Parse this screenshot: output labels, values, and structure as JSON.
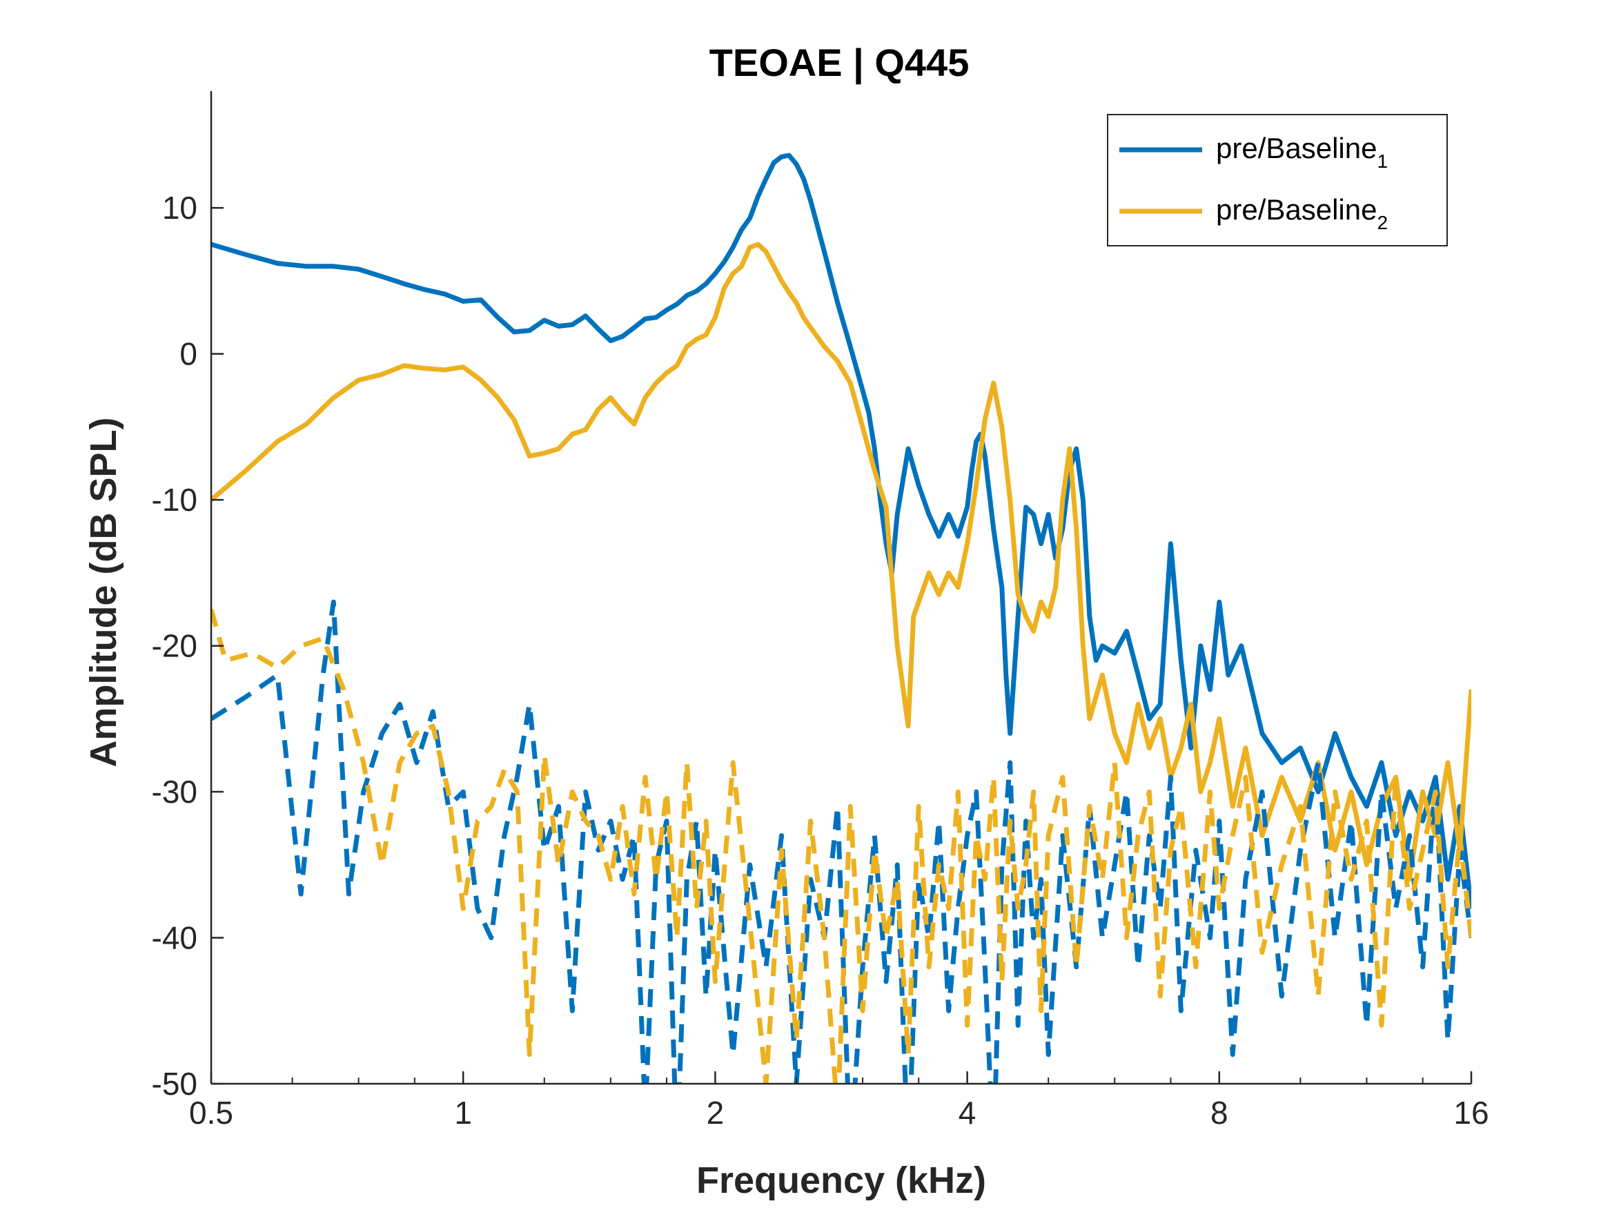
{
  "chart_data": {
    "type": "line",
    "title": "TEOAE | Q445",
    "xlabel": "Frequency (kHz)",
    "ylabel": "Amplitude (dB SPL)",
    "xscale": "log2",
    "xlim": [
      0.5,
      16
    ],
    "ylim": [
      -50,
      18
    ],
    "xticks": [
      0.5,
      1,
      2,
      4,
      8,
      16
    ],
    "xtick_labels": [
      "0.5",
      "1",
      "2",
      "4",
      "8",
      "16"
    ],
    "yticks": [
      10,
      0,
      -10,
      -20,
      -30,
      -40,
      -50
    ],
    "ytick_labels": [
      "10",
      "0",
      "-10",
      "-20",
      "-30",
      "-40",
      "-50"
    ],
    "grid": false,
    "legend_position": "top-right",
    "colors": {
      "series1": "#0072BD",
      "series2": "#EDB120",
      "axis": "#262626"
    },
    "series": [
      {
        "name": "pre/Baseline",
        "subscript": "1",
        "style": "solid",
        "color": "#0072BD",
        "x": [
          0.5,
          0.55,
          0.6,
          0.65,
          0.7,
          0.75,
          0.8,
          0.85,
          0.9,
          0.95,
          1.0,
          1.05,
          1.1,
          1.15,
          1.2,
          1.25,
          1.3,
          1.35,
          1.4,
          1.45,
          1.5,
          1.55,
          1.6,
          1.65,
          1.7,
          1.75,
          1.8,
          1.85,
          1.9,
          1.95,
          2.0,
          2.05,
          2.1,
          2.15,
          2.2,
          2.25,
          2.3,
          2.35,
          2.4,
          2.45,
          2.5,
          2.55,
          2.6,
          2.7,
          2.8,
          2.9,
          3.0,
          3.05,
          3.1,
          3.15,
          3.2,
          3.25,
          3.3,
          3.4,
          3.5,
          3.6,
          3.7,
          3.8,
          3.9,
          4.0,
          4.05,
          4.1,
          4.15,
          4.2,
          4.3,
          4.4,
          4.45,
          4.5,
          4.6,
          4.7,
          4.8,
          4.9,
          5.0,
          5.1,
          5.2,
          5.3,
          5.4,
          5.5,
          5.6,
          5.7,
          5.8,
          6.0,
          6.2,
          6.4,
          6.6,
          6.8,
          7.0,
          7.2,
          7.4,
          7.6,
          7.8,
          8.0,
          8.2,
          8.5,
          9.0,
          9.5,
          10.0,
          10.5,
          11.0,
          11.5,
          12.0,
          12.5,
          13.0,
          13.5,
          14.0,
          14.5,
          15.0,
          15.5,
          16.0
        ],
        "y": [
          7.5,
          6.8,
          6.2,
          6.0,
          6.0,
          5.8,
          5.3,
          4.8,
          4.4,
          4.1,
          3.6,
          3.7,
          2.5,
          1.5,
          1.6,
          2.3,
          1.9,
          2.0,
          2.6,
          1.7,
          0.9,
          1.2,
          1.8,
          2.4,
          2.5,
          3.0,
          3.4,
          4.0,
          4.3,
          4.8,
          5.5,
          6.3,
          7.3,
          8.5,
          9.3,
          10.8,
          12.0,
          13.1,
          13.5,
          13.6,
          13.0,
          12.0,
          10.5,
          7.0,
          3.5,
          0.5,
          -2.5,
          -4.0,
          -6.5,
          -10.0,
          -13.0,
          -15.0,
          -11.0,
          -6.5,
          -9.0,
          -11.0,
          -12.5,
          -11.0,
          -12.5,
          -10.5,
          -8.0,
          -6.0,
          -5.5,
          -7.0,
          -12.0,
          -16.0,
          -22.0,
          -26.0,
          -18.0,
          -10.5,
          -11.0,
          -13.0,
          -11.0,
          -14.0,
          -12.0,
          -8.0,
          -6.5,
          -10.0,
          -18.0,
          -21.0,
          -20.0,
          -20.5,
          -19.0,
          -22.0,
          -25.0,
          -24.0,
          -13.0,
          -21.0,
          -27.0,
          -20.0,
          -23.0,
          -17.0,
          -22.0,
          -20.0,
          -26.0,
          -28.0,
          -27.0,
          -30.0,
          -26.0,
          -29.0,
          -31.0,
          -28.0,
          -33.0,
          -30.0,
          -32.0,
          -29.0,
          -36.0,
          -31.0,
          -38.0
        ]
      },
      {
        "name": "pre/Baseline",
        "subscript": "2",
        "style": "solid",
        "color": "#EDB120",
        "x": [
          0.5,
          0.55,
          0.6,
          0.65,
          0.7,
          0.75,
          0.8,
          0.85,
          0.9,
          0.95,
          1.0,
          1.05,
          1.1,
          1.15,
          1.2,
          1.25,
          1.3,
          1.35,
          1.4,
          1.45,
          1.5,
          1.55,
          1.6,
          1.65,
          1.7,
          1.75,
          1.8,
          1.85,
          1.9,
          1.95,
          2.0,
          2.05,
          2.1,
          2.15,
          2.2,
          2.25,
          2.3,
          2.35,
          2.4,
          2.45,
          2.5,
          2.55,
          2.6,
          2.7,
          2.8,
          2.9,
          3.0,
          3.1,
          3.2,
          3.3,
          3.4,
          3.45,
          3.5,
          3.6,
          3.7,
          3.8,
          3.9,
          4.0,
          4.1,
          4.2,
          4.3,
          4.4,
          4.5,
          4.6,
          4.7,
          4.8,
          4.9,
          5.0,
          5.1,
          5.2,
          5.3,
          5.4,
          5.5,
          5.6,
          5.8,
          6.0,
          6.2,
          6.4,
          6.6,
          6.8,
          7.0,
          7.2,
          7.4,
          7.6,
          7.8,
          8.0,
          8.3,
          8.6,
          9.0,
          9.5,
          10.0,
          10.5,
          11.0,
          11.5,
          12.0,
          12.5,
          13.0,
          13.5,
          14.0,
          14.5,
          15.0,
          15.5,
          16.0
        ],
        "y": [
          -10.0,
          -8.0,
          -6.0,
          -4.8,
          -3.0,
          -1.8,
          -1.4,
          -0.8,
          -1.0,
          -1.1,
          -0.9,
          -1.8,
          -3.0,
          -4.5,
          -7.0,
          -6.8,
          -6.5,
          -5.5,
          -5.2,
          -3.8,
          -3.0,
          -4.0,
          -4.8,
          -3.0,
          -2.0,
          -1.3,
          -0.8,
          0.5,
          1.0,
          1.3,
          2.5,
          4.5,
          5.5,
          6.0,
          7.3,
          7.5,
          7.0,
          6.0,
          5.0,
          4.2,
          3.5,
          2.5,
          1.8,
          0.5,
          -0.5,
          -2.0,
          -5.0,
          -8.0,
          -10.5,
          -20.0,
          -25.5,
          -18.0,
          -17.0,
          -15.0,
          -16.5,
          -15.0,
          -16.0,
          -13.0,
          -9.0,
          -4.5,
          -2.0,
          -5.0,
          -10.0,
          -16.5,
          -18.0,
          -19.0,
          -17.0,
          -18.0,
          -16.0,
          -10.0,
          -6.5,
          -12.0,
          -20.0,
          -25.0,
          -22.0,
          -26.0,
          -28.0,
          -24.0,
          -27.0,
          -25.0,
          -29.0,
          -27.0,
          -24.0,
          -30.0,
          -28.0,
          -25.0,
          -31.0,
          -27.0,
          -33.0,
          -29.0,
          -32.0,
          -28.0,
          -34.0,
          -30.0,
          -35.0,
          -31.0,
          -29.0,
          -36.0,
          -30.0,
          -33.0,
          -28.0,
          -34.0,
          -23.0
        ]
      },
      {
        "name": "",
        "style": "dashed",
        "color": "#0072BD",
        "x": [
          0.5,
          0.55,
          0.6,
          0.64,
          0.68,
          0.7,
          0.73,
          0.76,
          0.8,
          0.84,
          0.88,
          0.92,
          0.96,
          1.0,
          1.04,
          1.08,
          1.12,
          1.16,
          1.2,
          1.25,
          1.3,
          1.35,
          1.4,
          1.45,
          1.5,
          1.55,
          1.6,
          1.65,
          1.7,
          1.75,
          1.8,
          1.85,
          1.9,
          1.95,
          2.0,
          2.1,
          2.2,
          2.3,
          2.4,
          2.5,
          2.6,
          2.7,
          2.8,
          2.9,
          3.0,
          3.1,
          3.2,
          3.3,
          3.4,
          3.5,
          3.6,
          3.7,
          3.8,
          3.9,
          4.0,
          4.1,
          4.2,
          4.3,
          4.4,
          4.5,
          4.6,
          4.7,
          4.8,
          4.9,
          5.0,
          5.2,
          5.4,
          5.6,
          5.8,
          6.0,
          6.2,
          6.4,
          6.6,
          6.8,
          7.0,
          7.2,
          7.5,
          7.8,
          8.0,
          8.3,
          8.6,
          9.0,
          9.5,
          10.0,
          10.5,
          11.0,
          11.5,
          12.0,
          12.5,
          13.0,
          13.5,
          14.0,
          14.5,
          15.0,
          15.5,
          16.0
        ],
        "y": [
          -25.0,
          -23.5,
          -22.0,
          -37.0,
          -22.0,
          -17.0,
          -37.0,
          -30.0,
          -26.0,
          -24.0,
          -28.0,
          -24.5,
          -31.0,
          -30.0,
          -38.0,
          -40.0,
          -33.0,
          -29.0,
          -24.0,
          -34.0,
          -31.0,
          -45.0,
          -30.0,
          -34.0,
          -32.0,
          -36.0,
          -33.0,
          -52.0,
          -35.0,
          -32.0,
          -55.0,
          -36.0,
          -32.0,
          -44.0,
          -34.0,
          -48.0,
          -35.0,
          -42.0,
          -33.0,
          -50.0,
          -36.0,
          -40.0,
          -31.0,
          -55.0,
          -42.0,
          -33.0,
          -43.0,
          -35.0,
          -55.0,
          -36.0,
          -40.0,
          -32.0,
          -45.0,
          -38.0,
          -33.0,
          -30.0,
          -42.0,
          -55.0,
          -35.0,
          -28.0,
          -46.0,
          -32.0,
          -40.0,
          -36.0,
          -48.0,
          -33.0,
          -42.0,
          -31.0,
          -40.0,
          -35.0,
          -30.0,
          -42.0,
          -33.0,
          -38.0,
          -29.0,
          -45.0,
          -34.0,
          -40.0,
          -32.0,
          -48.0,
          -36.0,
          -30.0,
          -44.0,
          -34.0,
          -28.0,
          -40.0,
          -32.0,
          -46.0,
          -30.0,
          -38.0,
          -33.0,
          -42.0,
          -29.0,
          -47.0,
          -34.0,
          -40.0
        ]
      },
      {
        "name": "",
        "style": "dashed",
        "color": "#EDB120",
        "x": [
          0.5,
          0.52,
          0.56,
          0.6,
          0.64,
          0.68,
          0.72,
          0.76,
          0.8,
          0.84,
          0.88,
          0.92,
          0.96,
          1.0,
          1.04,
          1.08,
          1.12,
          1.16,
          1.2,
          1.25,
          1.3,
          1.35,
          1.4,
          1.45,
          1.5,
          1.55,
          1.6,
          1.65,
          1.7,
          1.75,
          1.8,
          1.85,
          1.9,
          1.95,
          2.0,
          2.1,
          2.2,
          2.3,
          2.4,
          2.5,
          2.6,
          2.7,
          2.8,
          2.9,
          3.0,
          3.1,
          3.2,
          3.3,
          3.4,
          3.5,
          3.6,
          3.7,
          3.8,
          3.9,
          4.0,
          4.1,
          4.2,
          4.3,
          4.4,
          4.5,
          4.6,
          4.7,
          4.8,
          4.9,
          5.0,
          5.2,
          5.4,
          5.6,
          5.8,
          6.0,
          6.2,
          6.4,
          6.6,
          6.8,
          7.0,
          7.2,
          7.5,
          7.8,
          8.0,
          8.3,
          8.6,
          9.0,
          9.5,
          10.0,
          10.5,
          11.0,
          11.5,
          12.0,
          12.5,
          13.0,
          13.5,
          14.0,
          14.5,
          15.0,
          15.5,
          16.0
        ],
        "y": [
          -17.5,
          -21.0,
          -20.5,
          -21.5,
          -20.0,
          -19.5,
          -23.0,
          -28.0,
          -35.0,
          -28.0,
          -26.0,
          -25.5,
          -30.0,
          -38.0,
          -32.0,
          -31.0,
          -28.5,
          -30.0,
          -48.0,
          -27.5,
          -35.0,
          -30.0,
          -32.0,
          -33.0,
          -36.0,
          -31.0,
          -37.0,
          -29.0,
          -36.0,
          -30.0,
          -40.0,
          -28.0,
          -38.0,
          -32.0,
          -43.0,
          -28.0,
          -39.0,
          -50.0,
          -34.0,
          -47.0,
          -32.0,
          -40.0,
          -52.0,
          -31.0,
          -45.0,
          -34.0,
          -40.0,
          -36.0,
          -48.0,
          -31.0,
          -42.0,
          -35.0,
          -38.0,
          -30.0,
          -46.0,
          -33.0,
          -36.0,
          -29.0,
          -43.0,
          -32.0,
          -38.0,
          -35.0,
          -30.0,
          -45.0,
          -33.0,
          -29.0,
          -42.0,
          -31.0,
          -36.0,
          -28.0,
          -40.0,
          -33.0,
          -30.0,
          -44.0,
          -34.0,
          -31.0,
          -42.0,
          -30.0,
          -38.0,
          -33.0,
          -29.0,
          -41.0,
          -35.0,
          -31.0,
          -44.0,
          -30.0,
          -36.0,
          -32.0,
          -46.0,
          -29.0,
          -38.0,
          -34.0,
          -30.0,
          -42.0,
          -33.0,
          -40.0
        ]
      }
    ]
  }
}
